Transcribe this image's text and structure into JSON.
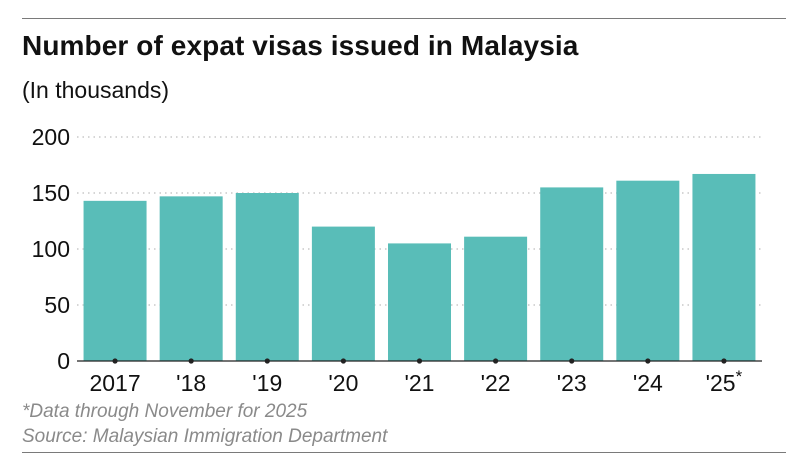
{
  "header": {
    "title": "Number of expat visas issued in Malaysia",
    "subtitle": "(In thousands)"
  },
  "footer": {
    "note": "*Data through November for 2025",
    "source": "Source: Malaysian Immigration Department"
  },
  "colors": {
    "bar": "#59bdb8",
    "grid": "#bdbdbd",
    "axis": "#222222",
    "text": "#111111",
    "muted": "#8a8a8a"
  },
  "chart_data": {
    "type": "bar",
    "categories": [
      "2017",
      "'18",
      "'19",
      "'20",
      "'21",
      "'22",
      "'23",
      "'24",
      "'25"
    ],
    "category_marks": [
      "",
      "",
      "",
      "",
      "",
      "",
      "",
      "",
      "*"
    ],
    "values": [
      143,
      147,
      150,
      120,
      105,
      111,
      155,
      161,
      167
    ],
    "ylim": [
      0,
      200
    ],
    "yticks": [
      0,
      50,
      100,
      150,
      200
    ],
    "grid": true,
    "xlabel": "",
    "ylabel": ""
  }
}
